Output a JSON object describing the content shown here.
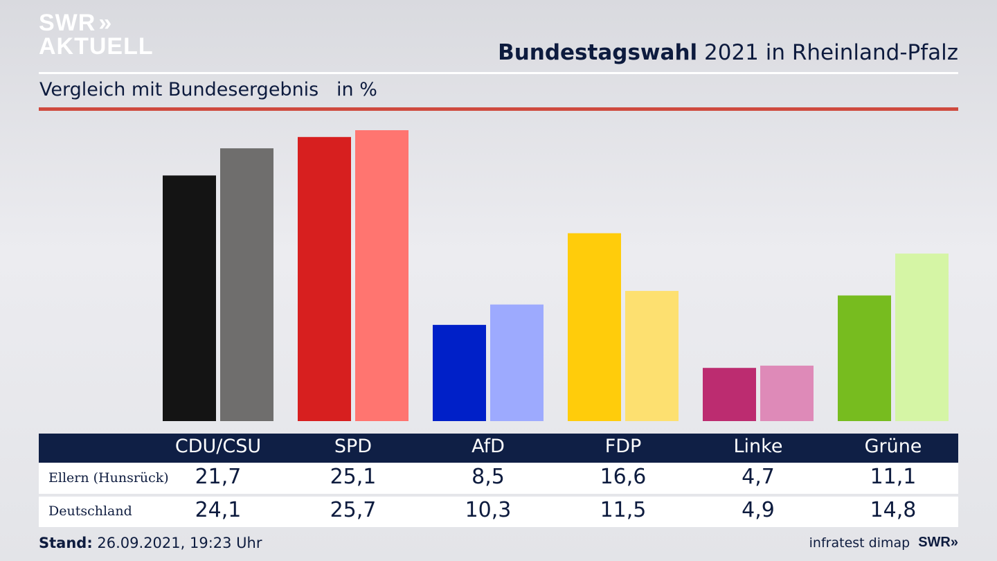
{
  "brand": {
    "line1": "SWR",
    "line2": "AKTUELL",
    "chevrons": "»"
  },
  "header": {
    "title_bold": "Bundestagswahl",
    "title_rest": " 2021 in Rheinland-Pfalz",
    "subtitle": "Vergleich mit Bundesergebnis",
    "unit": "in %"
  },
  "chart_data": {
    "type": "bar",
    "categories": [
      "CDU/CSU",
      "SPD",
      "AfD",
      "FDP",
      "Linke",
      "Grüne"
    ],
    "series": [
      {
        "name": "Ellern (Hunsrück)",
        "values": [
          21.7,
          25.1,
          8.5,
          16.6,
          4.7,
          11.1
        ],
        "display": [
          "21,7",
          "25,1",
          "8,5",
          "16,6",
          "4,7",
          "11,1"
        ]
      },
      {
        "name": "Deutschland",
        "values": [
          24.1,
          25.7,
          10.3,
          11.5,
          4.9,
          14.8
        ],
        "display": [
          "24,1",
          "25,7",
          "10,3",
          "11,5",
          "4,9",
          "14,8"
        ]
      }
    ],
    "colors": {
      "primary": [
        "#141414",
        "#d71f1f",
        "#0020c8",
        "#ffcc0b",
        "#bc2c70",
        "#77bc1f"
      ],
      "secondary": [
        "#6f6e6d",
        "#ff7570",
        "#9daafe",
        "#fde070",
        "#de8ab8",
        "#d5f5a5"
      ]
    },
    "ylim": [
      0,
      25.7
    ]
  },
  "footer": {
    "stand_label": "Stand:",
    "stand_value": " 26.09.2021, 19:23 Uhr",
    "source": "infratest dimap",
    "brand": "SWR»"
  }
}
